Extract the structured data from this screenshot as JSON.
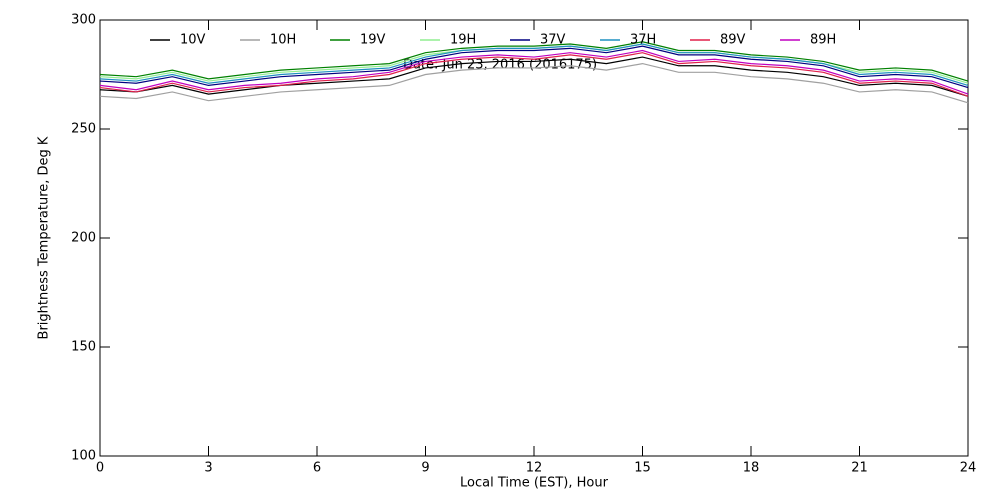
{
  "chart_data": {
    "type": "line",
    "annotation": "Date: Jun 23, 2016 (2016175)",
    "x_label": "Local Time (EST), Hour",
    "y_label": "Brightness Temperature, Deg K",
    "x": [
      0,
      1,
      2,
      3,
      4,
      5,
      6,
      7,
      8,
      9,
      10,
      11,
      12,
      13,
      14,
      15,
      16,
      17,
      18,
      19,
      20,
      21,
      22,
      23,
      24
    ],
    "xlim": [
      0,
      24
    ],
    "xticks": [
      0,
      3,
      6,
      9,
      12,
      15,
      18,
      21,
      24
    ],
    "ylim": [
      100,
      300
    ],
    "yticks": [
      100,
      150,
      200,
      250,
      300
    ],
    "series": [
      {
        "name": "10V",
        "color": "#000000",
        "values": [
          268,
          267,
          270,
          266,
          268,
          270,
          271,
          272,
          273,
          278,
          280,
          281,
          281,
          282,
          280,
          283,
          279,
          279,
          277,
          276,
          274,
          270,
          271,
          270,
          265
        ]
      },
      {
        "name": "10H",
        "color": "#a0a0a0",
        "values": [
          265,
          264,
          267,
          263,
          265,
          267,
          268,
          269,
          270,
          275,
          277,
          278,
          278,
          279,
          277,
          280,
          276,
          276,
          274,
          273,
          271,
          267,
          268,
          267,
          262
        ]
      },
      {
        "name": "19V",
        "color": "#008000",
        "values": [
          275,
          274,
          277,
          273,
          275,
          277,
          278,
          279,
          280,
          285,
          287,
          288,
          288,
          289,
          287,
          290,
          286,
          286,
          284,
          283,
          281,
          277,
          278,
          277,
          272
        ]
      },
      {
        "name": "19H",
        "color": "#90ee90",
        "values": [
          274,
          273,
          276,
          272,
          274,
          276,
          277,
          278,
          279,
          284,
          286,
          287,
          287,
          288,
          286,
          289,
          285,
          285,
          283,
          282,
          280,
          276,
          277,
          276,
          271
        ]
      },
      {
        "name": "37V",
        "color": "#000080",
        "values": [
          272,
          271,
          274,
          270,
          272,
          274,
          275,
          276,
          277,
          282,
          285,
          286,
          286,
          287,
          285,
          288,
          284,
          284,
          282,
          281,
          279,
          274,
          275,
          274,
          269
        ]
      },
      {
        "name": "37H",
        "color": "#1e90c0",
        "values": [
          273,
          272,
          275,
          271,
          273,
          275,
          276,
          277,
          278,
          283,
          286,
          287,
          287,
          288,
          286,
          289,
          285,
          285,
          283,
          282,
          280,
          275,
          276,
          275,
          270
        ]
      },
      {
        "name": "89V",
        "color": "#e0204a",
        "values": [
          269,
          267,
          271,
          267,
          269,
          270,
          272,
          273,
          275,
          280,
          282,
          283,
          282,
          284,
          282,
          285,
          280,
          281,
          279,
          278,
          276,
          271,
          272,
          271,
          265
        ]
      },
      {
        "name": "89H",
        "color": "#c000c0",
        "values": [
          270,
          268,
          272,
          268,
          270,
          271,
          273,
          274,
          276,
          281,
          283,
          284,
          283,
          285,
          283,
          286,
          281,
          282,
          280,
          279,
          277,
          272,
          273,
          272,
          266
        ]
      }
    ]
  }
}
